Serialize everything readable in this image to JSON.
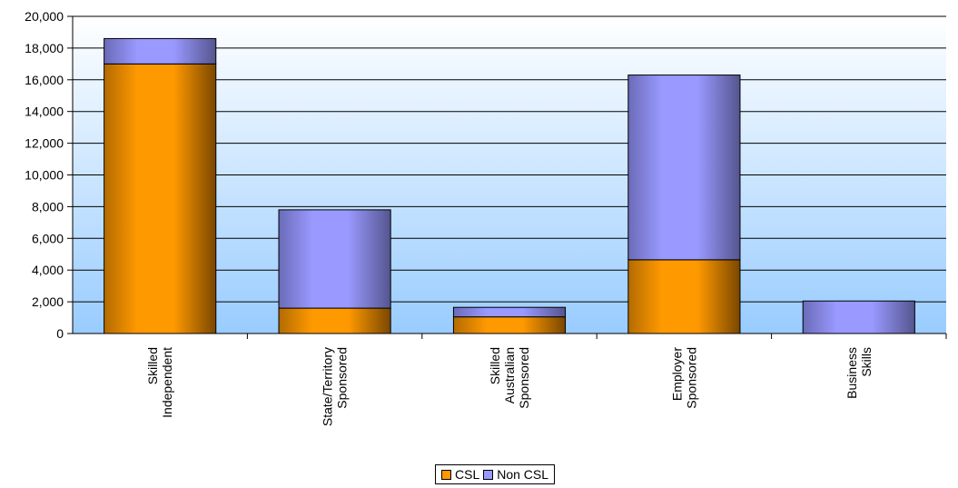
{
  "chart_data": {
    "type": "bar",
    "stacked": true,
    "title": "",
    "xlabel": "",
    "ylabel": "",
    "categories": [
      [
        "Skilled",
        "Independent"
      ],
      [
        "State/Territory",
        "Sponsored"
      ],
      [
        "Skilled",
        "Australian",
        "Sponsored"
      ],
      [
        "Employer",
        "Sponsored"
      ],
      [
        "Business",
        "Skills"
      ]
    ],
    "series": [
      {
        "name": "CSL",
        "color": "#FF9900",
        "values": [
          17000,
          1600,
          1050,
          4650,
          0
        ]
      },
      {
        "name": "Non CSL",
        "color": "#9999FF",
        "values": [
          1600,
          6200,
          600,
          11650,
          2050
        ]
      }
    ],
    "ylim": [
      0,
      20000
    ],
    "yticks": [
      0,
      2000,
      4000,
      6000,
      8000,
      10000,
      12000,
      14000,
      16000,
      18000,
      20000
    ],
    "ytick_labels": [
      "0",
      "2,000",
      "4,000",
      "6,000",
      "8,000",
      "10,000",
      "12,000",
      "14,000",
      "16,000",
      "18,000",
      "20,000"
    ],
    "grid": true,
    "legend_position": "bottom"
  }
}
